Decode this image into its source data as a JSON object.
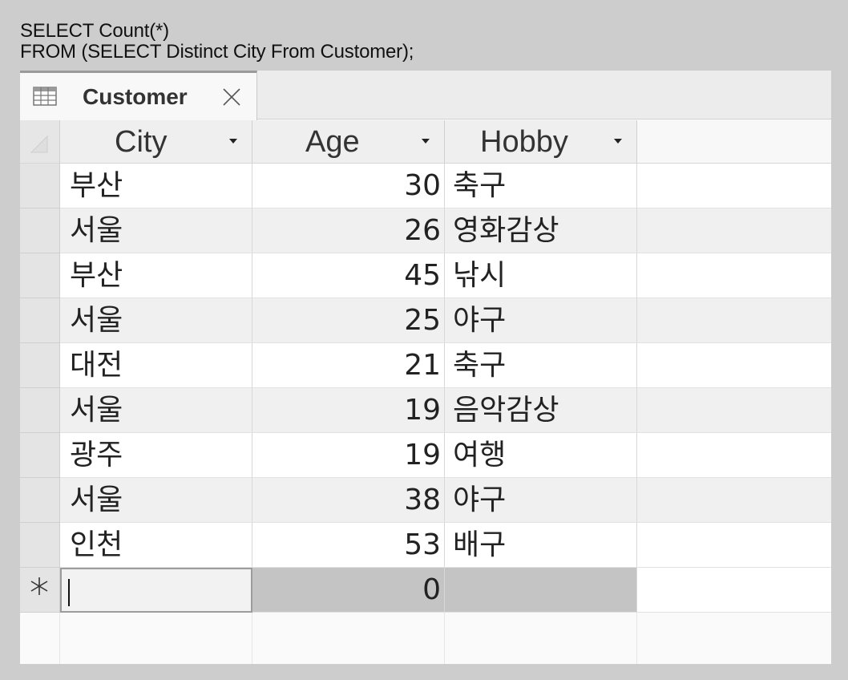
{
  "sql": {
    "line1": "SELECT Count(*)",
    "line2": "FROM (SELECT Distinct City From Customer);"
  },
  "tab": {
    "label": "Customer",
    "icon": "table-icon",
    "close_icon": "close-icon"
  },
  "columns": [
    {
      "label": "City",
      "icon": "dropdown-arrow-icon"
    },
    {
      "label": "Age",
      "icon": "dropdown-arrow-icon"
    },
    {
      "label": "Hobby",
      "icon": "dropdown-arrow-icon"
    }
  ],
  "rows": [
    {
      "city": "부산",
      "age": "30",
      "hobby": "축구"
    },
    {
      "city": "서울",
      "age": "26",
      "hobby": "영화감상"
    },
    {
      "city": "부산",
      "age": "45",
      "hobby": "낚시"
    },
    {
      "city": "서울",
      "age": "25",
      "hobby": "야구"
    },
    {
      "city": "대전",
      "age": "21",
      "hobby": "축구"
    },
    {
      "city": "서울",
      "age": "19",
      "hobby": "음악감상"
    },
    {
      "city": "광주",
      "age": "19",
      "hobby": "여행"
    },
    {
      "city": "서울",
      "age": "38",
      "hobby": "야구"
    },
    {
      "city": "인천",
      "age": "53",
      "hobby": "배구"
    }
  ],
  "new_row": {
    "marker_icon": "new-record-asterisk-icon",
    "city": "",
    "age": "0",
    "hobby": ""
  }
}
